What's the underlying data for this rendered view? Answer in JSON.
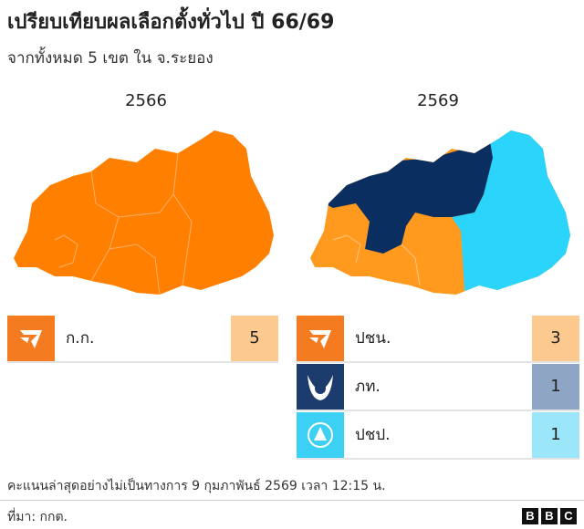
{
  "title": "เปรียบเทียบผลเลือกตั้งทั่วไป ปี 66/69",
  "subtitle": "จากทั้งหมด 5 เขต ใน จ.ระยอง",
  "panels": [
    {
      "year": "2566",
      "rows": [
        {
          "party": "ก.ก.",
          "seats": 5,
          "color": "#f47b20",
          "seat_color": "#fcc98f"
        }
      ]
    },
    {
      "year": "2569",
      "rows": [
        {
          "party": "ปชน.",
          "seats": 3,
          "color": "#f47b20",
          "seat_color": "#fcc98f"
        },
        {
          "party": "ภท.",
          "seats": 1,
          "color": "#1b3c6c",
          "seat_color": "#8ea6c4"
        },
        {
          "party": "ปชป.",
          "seats": 1,
          "color": "#3dd0f5",
          "seat_color": "#9be6f9"
        }
      ]
    }
  ],
  "note": "คะแนนล่าสุดอย่างไม่เป็นทางการ 9 กุมภาพันธ์ 2569 เวลา 12:15 น.",
  "source": "ที่มา: กกต.",
  "logo": [
    "B",
    "B",
    "C"
  ]
}
